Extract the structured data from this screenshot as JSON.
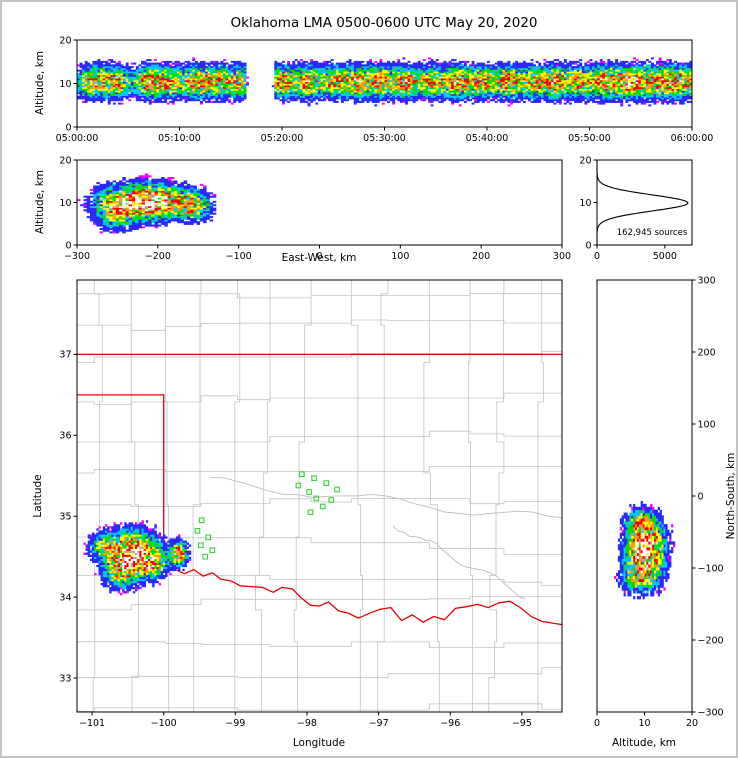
{
  "title": "Oklahoma LMA 0500-0600 UTC May 20, 2020",
  "labels": {
    "altitude_km": "Altitude, km",
    "east_west_km": "East-West, km",
    "north_south_km": "North-South, km",
    "latitude": "Latitude",
    "longitude": "Longitude",
    "source_count": "162,945 sources"
  },
  "colors": {
    "density_scale": [
      {
        "min": 0.1,
        "color": "#2929ff"
      },
      {
        "min": 0.3,
        "color": "#00c8ff"
      },
      {
        "min": 0.52,
        "color": "#00dc00"
      },
      {
        "min": 0.82,
        "color": "#ffff00"
      },
      {
        "min": 1.12,
        "color": "#ff9b00"
      },
      {
        "min": 1.48,
        "color": "#ff0000"
      },
      {
        "min": 1.95,
        "color": "#a8a8a8"
      },
      {
        "min": 2.2,
        "color": "#ffffff"
      }
    ],
    "density_fringe": "#ff00ff",
    "state_border": "#e60000",
    "county_line": "#c2c2c2",
    "river_line": "#bdbdbd",
    "station_marker": "#3ecf3e",
    "histogram_line": "#000000",
    "axis": "#000000",
    "background": "#ffffff",
    "frame_border": "#c3c3c3"
  },
  "chart_data": [
    {
      "name": "time-height",
      "type": "heatmap",
      "ylabel": "Altitude, km",
      "x_range": [
        0,
        3600
      ],
      "y_range": [
        0,
        20
      ],
      "x_tick_values": [
        0,
        600,
        1200,
        1800,
        2400,
        3000,
        3600
      ],
      "x_tick_labels": [
        "05:00:00",
        "05:10:00",
        "05:20:00",
        "05:30:00",
        "05:40:00",
        "05:50:00",
        "06:00:00"
      ],
      "y_tick_values": [
        0,
        10,
        20
      ],
      "band": {
        "center_alt_km": 10.2,
        "sigma_km": 2.0,
        "base_rate": 0.22,
        "pulse_sigma_min": 0.85,
        "gap_minutes": [
          16.4,
          19.2
        ],
        "pulses": [
          [
            1.5,
            1.2
          ],
          [
            3.6,
            1.0
          ],
          [
            7.0,
            1.3
          ],
          [
            9.0,
            0.9
          ],
          [
            11.5,
            1.2
          ],
          [
            13.6,
            1.0
          ],
          [
            15.7,
            0.9
          ],
          [
            20.0,
            1.1
          ],
          [
            22.4,
            1.2
          ],
          [
            25.0,
            1.0
          ],
          [
            27.2,
            1.3
          ],
          [
            29.5,
            1.1
          ],
          [
            32.0,
            1.2
          ],
          [
            34.5,
            1.0
          ],
          [
            37.0,
            1.3
          ],
          [
            39.4,
            1.1
          ],
          [
            42.0,
            1.2
          ],
          [
            44.5,
            1.0
          ],
          [
            46.6,
            1.2
          ],
          [
            49.0,
            1.1
          ],
          [
            51.5,
            1.4
          ],
          [
            53.6,
            1.3
          ],
          [
            55.5,
            1.1
          ],
          [
            57.5,
            1.2
          ],
          [
            59.3,
            1.0
          ]
        ]
      }
    },
    {
      "name": "ew-altitude",
      "type": "heatmap",
      "xlabel": "East-West, km",
      "ylabel": "Altitude, km",
      "x_range": [
        -300,
        300
      ],
      "y_range": [
        0,
        20
      ],
      "x_tick_values": [
        -300,
        -200,
        -100,
        0,
        100,
        200,
        300
      ],
      "x_tick_labels": [
        "−300",
        "−200",
        "−100",
        "0",
        "100",
        "200",
        "300"
      ],
      "y_tick_values": [
        0,
        10,
        20
      ],
      "blobs": [
        {
          "x": -215,
          "y": 10,
          "sx": 30,
          "sy": 2.2,
          "amp": 2.3
        },
        {
          "x": -158,
          "y": 9,
          "sx": 11,
          "sy": 1.8,
          "amp": 1.2
        },
        {
          "x": -253,
          "y": 8,
          "sx": 14,
          "sy": 2.4,
          "amp": 0.9
        }
      ],
      "eval_x": [
        -300,
        -100
      ],
      "eval_y": [
        2,
        18
      ]
    },
    {
      "name": "altitude-histogram",
      "type": "line",
      "x_range": [
        0,
        7000
      ],
      "y_range": [
        0,
        20
      ],
      "x_tick_values": [
        0,
        5000
      ],
      "x_tick_labels": [
        "0",
        "5000"
      ],
      "y_tick_values": [
        0,
        10,
        20
      ],
      "annotation": "162,945 sources",
      "total_sources": 162945,
      "profile": {
        "peak_sources": 6700,
        "peak_alt_km": 9.9,
        "sigma_km": 1.9
      }
    },
    {
      "name": "plan-view",
      "type": "map-heatmap",
      "xlabel": "Longitude",
      "ylabel": "Latitude",
      "lon_range": [
        -101.21,
        -94.44
      ],
      "lat_range": [
        32.58,
        37.92
      ],
      "x_tick_values": [
        -101,
        -100,
        -99,
        -98,
        -97,
        -96,
        -95
      ],
      "x_tick_labels": [
        "−101",
        "−100",
        "−99",
        "−98",
        "−97",
        "−96",
        "−95"
      ],
      "y_tick_values": [
        33,
        34,
        35,
        36,
        37
      ],
      "y_tick_labels": [
        "33",
        "34",
        "35",
        "36",
        "37"
      ],
      "blobs": [
        {
          "x": -100.44,
          "y": 34.52,
          "sx": 0.2,
          "sy": 0.15,
          "amp": 2.4
        },
        {
          "x": -100.15,
          "y": 34.4,
          "sx": 0.1,
          "sy": 0.09,
          "amp": 1.1
        },
        {
          "x": -99.81,
          "y": 34.53,
          "sx": 0.07,
          "sy": 0.08,
          "amp": 1.7
        },
        {
          "x": -100.62,
          "y": 34.28,
          "sx": 0.13,
          "sy": 0.1,
          "amp": 0.9
        },
        {
          "x": -100.85,
          "y": 34.62,
          "sx": 0.12,
          "sy": 0.1,
          "amp": 0.7
        }
      ],
      "eval_x": [
        -101.21,
        -99.5
      ],
      "eval_y": [
        33.95,
        35.05
      ],
      "stations": [
        [
          -98.07,
          35.52
        ],
        [
          -97.9,
          35.47
        ],
        [
          -98.12,
          35.38
        ],
        [
          -97.73,
          35.41
        ],
        [
          -97.97,
          35.3
        ],
        [
          -97.58,
          35.33
        ],
        [
          -97.87,
          35.22
        ],
        [
          -97.66,
          35.2
        ],
        [
          -97.78,
          35.12
        ],
        [
          -97.95,
          35.05
        ],
        [
          -99.47,
          34.95
        ],
        [
          -99.53,
          34.82
        ],
        [
          -99.38,
          34.74
        ],
        [
          -99.48,
          34.64
        ],
        [
          -99.32,
          34.58
        ],
        [
          -99.42,
          34.5
        ]
      ],
      "state_borders": {
        "kansas_south": [
          [
            -101.21,
            37.0
          ],
          [
            -94.44,
            37.0
          ]
        ],
        "texas_panhandle": [
          [
            -101.21,
            36.5
          ],
          [
            -100.0,
            36.5
          ],
          [
            -100.0,
            34.42
          ]
        ],
        "red_river": [
          [
            -100.0,
            34.42
          ],
          [
            -99.86,
            34.35
          ],
          [
            -99.71,
            34.29
          ],
          [
            -99.58,
            34.34
          ],
          [
            -99.45,
            34.26
          ],
          [
            -99.32,
            34.3
          ],
          [
            -99.2,
            34.22
          ],
          [
            -99.06,
            34.2
          ],
          [
            -98.93,
            34.14
          ],
          [
            -98.78,
            34.13
          ],
          [
            -98.62,
            34.12
          ],
          [
            -98.47,
            34.06
          ],
          [
            -98.35,
            34.12
          ],
          [
            -98.2,
            34.1
          ],
          [
            -98.08,
            33.99
          ],
          [
            -97.95,
            33.9
          ],
          [
            -97.83,
            33.89
          ],
          [
            -97.7,
            33.94
          ],
          [
            -97.56,
            33.83
          ],
          [
            -97.42,
            33.8
          ],
          [
            -97.28,
            33.74
          ],
          [
            -97.13,
            33.8
          ],
          [
            -96.98,
            33.85
          ],
          [
            -96.83,
            33.87
          ],
          [
            -96.68,
            33.71
          ],
          [
            -96.53,
            33.78
          ],
          [
            -96.38,
            33.69
          ],
          [
            -96.23,
            33.76
          ],
          [
            -96.08,
            33.72
          ],
          [
            -95.93,
            33.86
          ],
          [
            -95.78,
            33.88
          ],
          [
            -95.62,
            33.91
          ],
          [
            -95.47,
            33.87
          ],
          [
            -95.32,
            33.93
          ],
          [
            -95.17,
            33.95
          ],
          [
            -95.02,
            33.87
          ],
          [
            -94.87,
            33.76
          ],
          [
            -94.72,
            33.7
          ],
          [
            -94.44,
            33.66
          ]
        ]
      },
      "county_grid": {
        "lon_start": -100.97,
        "lon_step": 0.5,
        "lat_start": 37.75,
        "lat_step": 0.43,
        "jog_probability": 0.35
      },
      "rivers": [
        {
          "from": [
            -99.35,
            35.42
          ],
          "to": [
            -94.44,
            34.95
          ],
          "wiggle": 0.07
        },
        {
          "from": [
            -96.8,
            34.9
          ],
          "to": [
            -94.95,
            34.02
          ],
          "wiggle": 0.05
        }
      ]
    },
    {
      "name": "ns-altitude",
      "type": "heatmap",
      "xlabel": "Altitude, km",
      "ylabel": "North-South, km",
      "x_range": [
        0,
        20
      ],
      "y_range": [
        -300,
        300
      ],
      "x_tick_values": [
        0,
        10,
        20
      ],
      "y_tick_values": [
        -300,
        -200,
        -100,
        0,
        100,
        200,
        300
      ],
      "y_tick_labels": [
        "−300",
        "−200",
        "−100",
        "0",
        "100",
        "200",
        "300"
      ],
      "blobs": [
        {
          "x": 10,
          "y": -78,
          "sx": 2.2,
          "sy": 24,
          "amp": 2.3
        },
        {
          "x": 9,
          "y": -40,
          "sx": 1.8,
          "sy": 10,
          "amp": 0.9
        },
        {
          "x": 8.5,
          "y": -115,
          "sx": 2.0,
          "sy": 11,
          "amp": 0.8
        }
      ],
      "eval_x": [
        2,
        18
      ],
      "eval_y": [
        -175,
        15
      ]
    }
  ]
}
